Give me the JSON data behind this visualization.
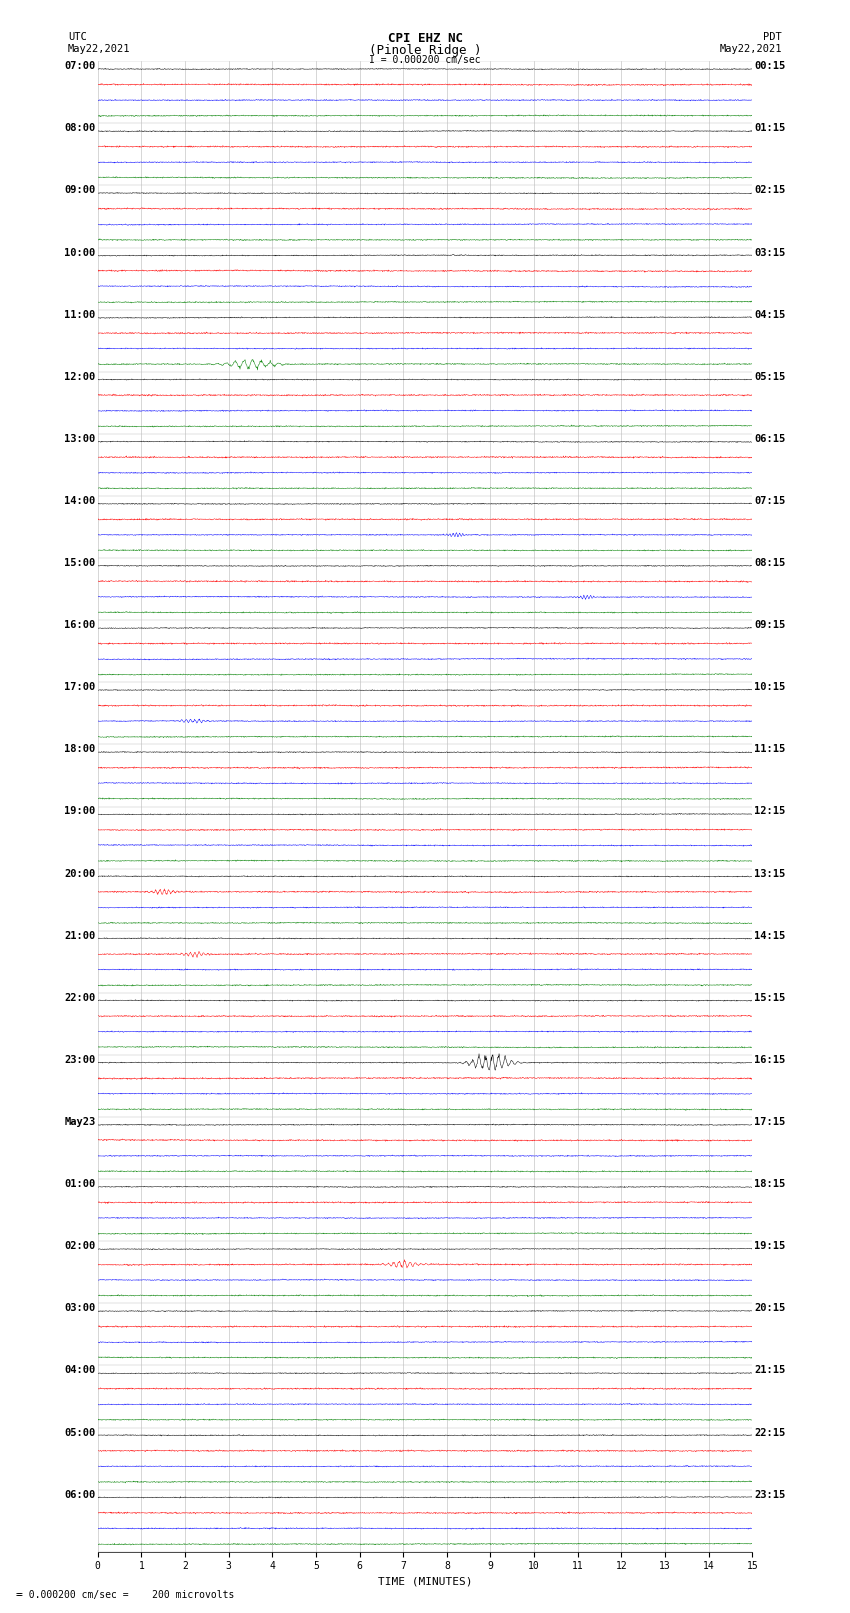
{
  "title_line1": "CPI EHZ NC",
  "title_line2": "(Pinole Ridge )",
  "title_line3": "I = 0.000200 cm/sec",
  "left_header_line1": "UTC",
  "left_header_line2": "May22,2021",
  "right_header_line1": "PDT",
  "right_header_line2": "May22,2021",
  "xlabel": "TIME (MINUTES)",
  "footer": "= 0.000200 cm/sec =    200 microvolts",
  "utc_labels": [
    "07:00",
    "08:00",
    "09:00",
    "10:00",
    "11:00",
    "12:00",
    "13:00",
    "14:00",
    "15:00",
    "16:00",
    "17:00",
    "18:00",
    "19:00",
    "20:00",
    "21:00",
    "22:00",
    "23:00",
    "May23",
    "01:00",
    "02:00",
    "03:00",
    "04:00",
    "05:00",
    "06:00"
  ],
  "pdt_labels": [
    "00:15",
    "01:15",
    "02:15",
    "03:15",
    "04:15",
    "05:15",
    "06:15",
    "07:15",
    "08:15",
    "09:15",
    "10:15",
    "11:15",
    "12:15",
    "13:15",
    "14:15",
    "15:15",
    "16:15",
    "17:15",
    "18:15",
    "19:15",
    "20:15",
    "21:15",
    "22:15",
    "23:15"
  ],
  "trace_colors": [
    "black",
    "red",
    "blue",
    "green"
  ],
  "n_hours": 24,
  "xmin": 0,
  "xmax": 15,
  "noise_scale": 0.025,
  "bg_color": "white",
  "grid_color": "#888888"
}
